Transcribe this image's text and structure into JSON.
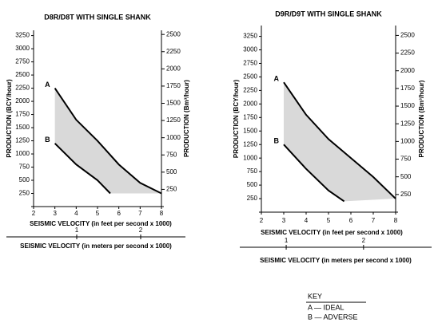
{
  "chart_data": [
    {
      "type": "line",
      "title": "D8R/D8T WITH SINGLE SHANK",
      "x_label": "SEISMIC VELOCITY (in feet per second x 1000)",
      "x2_label": "SEISMIC VELOCITY (in meters per second x 1000)",
      "y_label": "PRODUCTION (BCY/hour)",
      "y2_label": "PRODUCTION (Bm³/hour)",
      "xlim": [
        2,
        8
      ],
      "xticks": [
        2,
        3,
        4,
        5,
        6,
        7,
        8
      ],
      "x2lim": [
        -0.1,
        2.7
      ],
      "x2ticks": [
        1,
        2
      ],
      "ylim": [
        0,
        3350
      ],
      "yticks": [
        250,
        500,
        750,
        1000,
        1250,
        1500,
        1750,
        2000,
        2250,
        2500,
        2750,
        3000,
        3250
      ],
      "y2lim": [
        0,
        2560
      ],
      "y2ticks": [
        250,
        500,
        750,
        1000,
        1250,
        1500,
        1750,
        2000,
        2250,
        2500
      ],
      "color": "#000000",
      "fill": "#d9d9d9",
      "series": [
        {
          "name": "A",
          "x": [
            3,
            4,
            5,
            6,
            7,
            8
          ],
          "values": [
            2250,
            1650,
            1250,
            800,
            450,
            250
          ]
        },
        {
          "name": "B",
          "x": [
            3,
            4,
            5,
            5.6
          ],
          "values": [
            1200,
            800,
            500,
            250
          ]
        }
      ]
    },
    {
      "type": "line",
      "title": "D9R/D9T WITH SINGLE SHANK",
      "x_label": "SEISMIC VELOCITY (in feet per second x 1000)",
      "x2_label": "SEISMIC VELOCITY (in meters per second x 1000)",
      "y_label": "PRODUCTION (BCY/hour)",
      "y2_label": "PRODUCTION (Bm³/hour)",
      "xlim": [
        2,
        8
      ],
      "xticks": [
        2,
        3,
        4,
        5,
        6,
        7,
        8
      ],
      "x2lim": [
        0.4,
        2.88
      ],
      "x2ticks": [
        1,
        2
      ],
      "ylim": [
        0,
        3450
      ],
      "yticks": [
        250,
        500,
        750,
        1000,
        1250,
        1500,
        1750,
        2000,
        2250,
        2500,
        2750,
        3000,
        3250
      ],
      "y2lim": [
        0,
        2640
      ],
      "y2ticks": [
        250,
        500,
        750,
        1000,
        1250,
        1500,
        1750,
        2000,
        2250,
        2500
      ],
      "color": "#000000",
      "fill": "#d9d9d9",
      "series": [
        {
          "name": "A",
          "x": [
            3,
            4,
            5,
            6,
            7,
            8
          ],
          "values": [
            2400,
            1800,
            1350,
            1000,
            650,
            250
          ]
        },
        {
          "name": "B",
          "x": [
            3,
            4,
            5,
            5.7
          ],
          "values": [
            1250,
            800,
            400,
            200
          ]
        }
      ]
    }
  ],
  "key": {
    "title": "KEY",
    "items": [
      "A — IDEAL",
      "B — ADVERSE"
    ]
  }
}
